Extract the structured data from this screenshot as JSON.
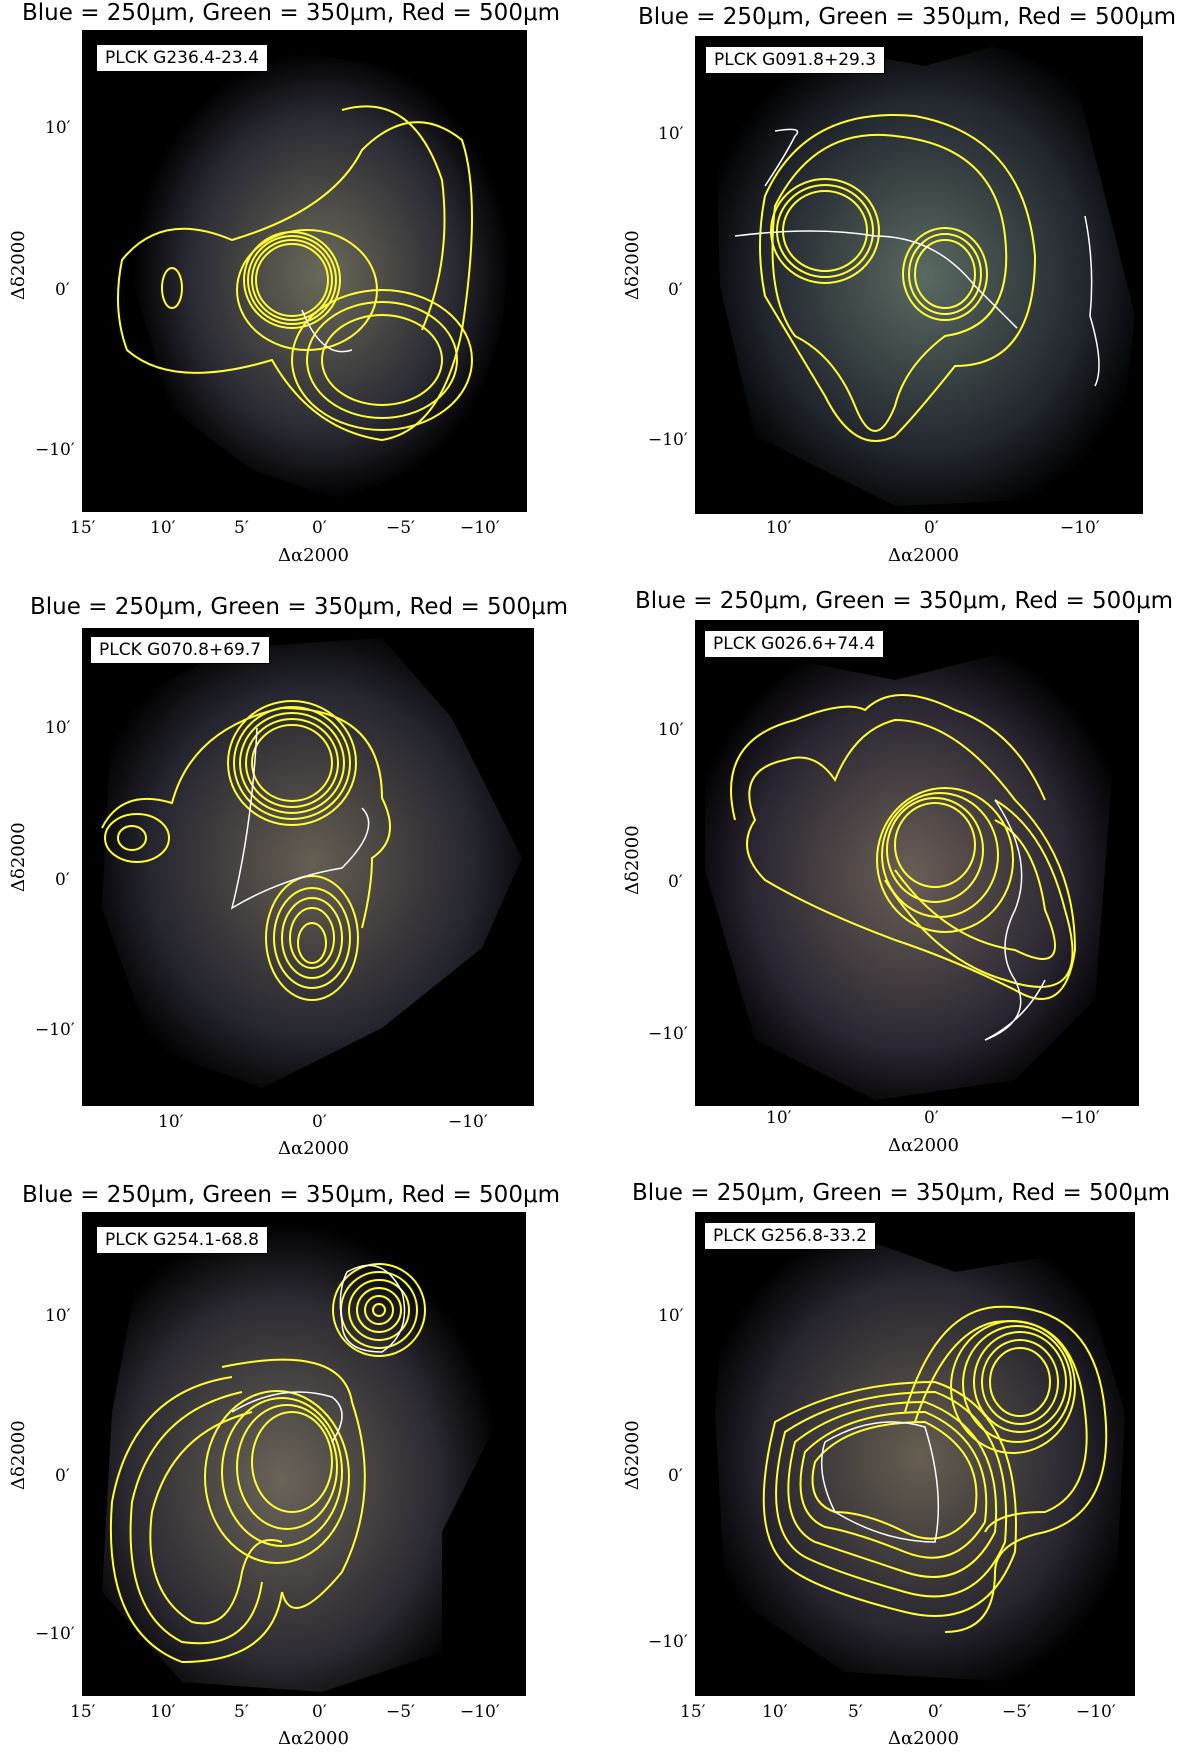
{
  "panels": [
    {
      "title": "Blue = 250μm, Green = 350μm, Red = 500μm",
      "label": "PLCK G236.4-23.4",
      "xticks": [
        "15′",
        "10′",
        "5′",
        "0′",
        "−5′",
        "−10′"
      ],
      "yticks": [
        "10′",
        "0′",
        "−10′"
      ],
      "xlabel": "Δα2000",
      "ylabel": "Δδ2000"
    },
    {
      "title": "Blue = 250μm, Green = 350μm, Red = 500μm",
      "label": "PLCK G091.8+29.3",
      "xticks": [
        "10′",
        "0′",
        "−10′"
      ],
      "yticks": [
        "10′",
        "0′",
        "−10′"
      ],
      "xlabel": "Δα2000",
      "ylabel": "Δδ2000"
    },
    {
      "title": "Blue = 250μm, Green = 350μm, Red = 500μm",
      "label": "PLCK G070.8+69.7",
      "xticks": [
        "10′",
        "0′",
        "−10′"
      ],
      "yticks": [
        "10′",
        "0′",
        "−10′"
      ],
      "xlabel": "Δα2000",
      "ylabel": "Δδ2000"
    },
    {
      "title": "Blue = 250μm, Green = 350μm, Red = 500μm",
      "label": "PLCK G026.6+74.4",
      "xticks": [
        "10′",
        "0′",
        "−10′"
      ],
      "yticks": [
        "10′",
        "0′",
        "−10′"
      ],
      "xlabel": "Δα2000",
      "ylabel": "Δδ2000"
    },
    {
      "title": "Blue = 250μm, Green = 350μm, Red = 500μm",
      "label": "PLCK G254.1-68.8",
      "xticks": [
        "15′",
        "10′",
        "5′",
        "0′",
        "−5′",
        "−10′"
      ],
      "yticks": [
        "10′",
        "0′",
        "−10′"
      ],
      "xlabel": "Δα2000",
      "ylabel": "Δδ2000"
    },
    {
      "title": "Blue = 250μm, Green = 350μm, Red = 500μm",
      "label": "PLCK G256.8-33.2",
      "xticks": [
        "15′",
        "10′",
        "5′",
        "0′",
        "−5′",
        "−10′"
      ],
      "yticks": [
        "10′",
        "0′",
        "−10′"
      ],
      "xlabel": "Δα2000",
      "ylabel": "Δδ2000"
    }
  ],
  "colors": {
    "contour": "#ffff33",
    "overlay": "#ffffff",
    "background": "#000000"
  }
}
